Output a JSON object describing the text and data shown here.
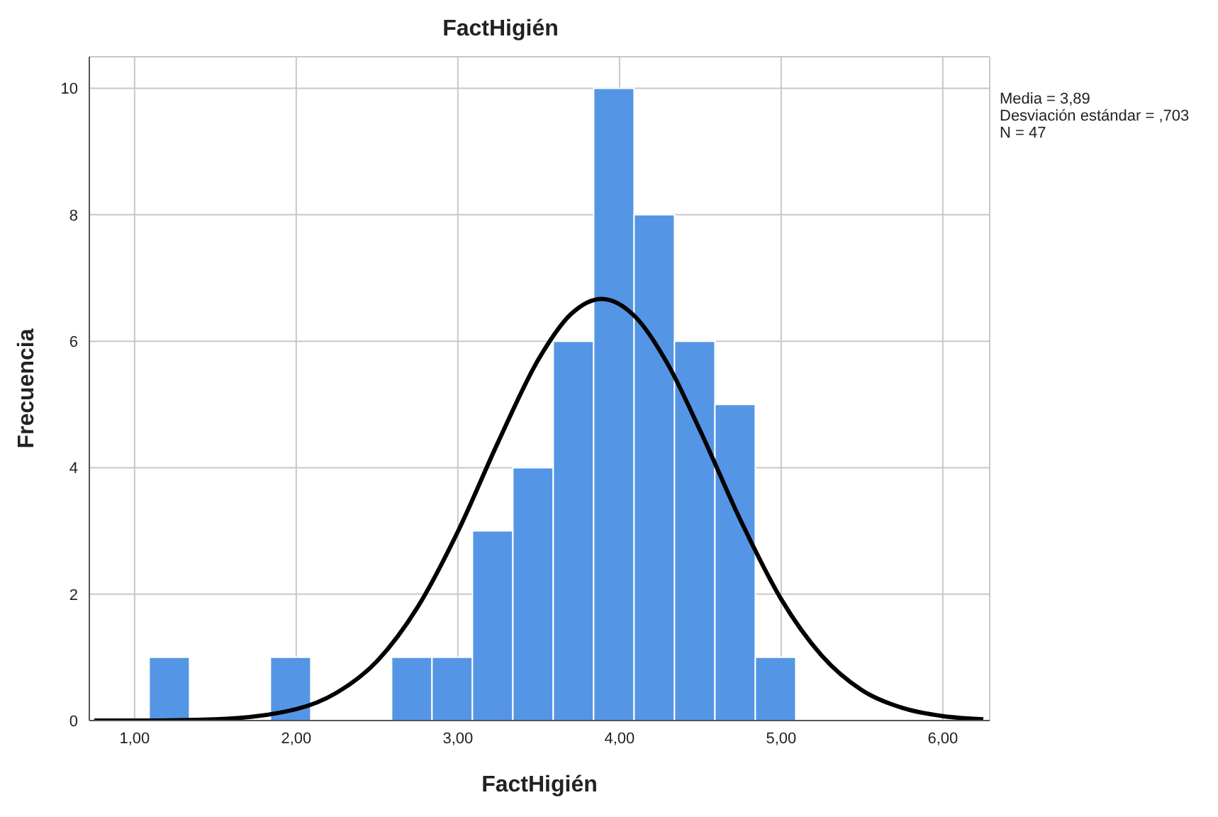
{
  "chart_data": {
    "type": "histogram",
    "title": "FactHigién",
    "xlabel": "FactHigién",
    "ylabel": "Frecuencia",
    "bins": [
      1.09,
      1.34,
      1.59,
      1.84,
      2.09,
      2.34,
      2.59,
      2.84,
      3.09,
      3.34,
      3.59,
      3.84,
      4.09,
      4.34,
      4.59,
      4.84,
      5.09
    ],
    "values": [
      1,
      0,
      0,
      1,
      0,
      0,
      1,
      1,
      3,
      4,
      6,
      10,
      8,
      6,
      5,
      1
    ],
    "color": "#5595e5",
    "series": [
      {
        "type": "line",
        "color": "#000000",
        "x": [
          0.75,
          1.0,
          1.5,
          2.0,
          2.25,
          2.5,
          2.75,
          3.0,
          3.25,
          3.5,
          3.7,
          3.89,
          4.1,
          4.3,
          4.5,
          4.75,
          5.0,
          5.25,
          5.5,
          5.75,
          6.0,
          6.25
        ],
        "values": [
          0,
          0,
          0.02,
          0.18,
          0.44,
          0.94,
          1.79,
          2.99,
          4.41,
          5.72,
          6.43,
          6.67,
          6.38,
          5.63,
          4.58,
          3.16,
          1.92,
          1.03,
          0.48,
          0.2,
          0.07,
          0.02
        ]
      }
    ],
    "xlim": [
      0.72,
      6.29
    ],
    "ylim": [
      0,
      10.5
    ],
    "xticks": [
      {
        "value": 1,
        "label": "1,00"
      },
      {
        "value": 2,
        "label": "2,00"
      },
      {
        "value": 3,
        "label": "3,00"
      },
      {
        "value": 4,
        "label": "4,00"
      },
      {
        "value": 5,
        "label": "5,00"
      },
      {
        "value": 6,
        "label": "6,00"
      }
    ],
    "yticks": [
      0,
      2,
      4,
      6,
      8,
      10
    ],
    "grid": true,
    "marker": "none",
    "line_style": "solid",
    "annotations": [
      "Media = 3,89",
      "Desviación estándar = ,703",
      "N = 47"
    ]
  }
}
